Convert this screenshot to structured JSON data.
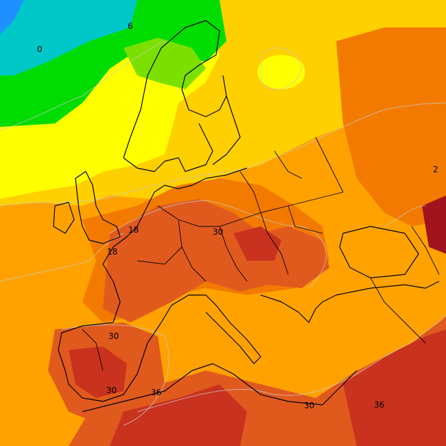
{
  "map": {
    "type": "temperature-field",
    "region": "Europe",
    "colors": {
      "cold_blue": "#1e90ff",
      "cyan": "#00c8c8",
      "green": "#00dc00",
      "light_green": "#7be000",
      "yellow": "#ffff00",
      "yellow_orange": "#ffd000",
      "orange": "#ffa200",
      "dark_orange": "#f27a00",
      "red_orange": "#e05a1e",
      "red": "#c8321e",
      "dark_red": "#a0141e"
    },
    "contour_labels": [
      "0",
      "6",
      "18",
      "18",
      "30",
      "30",
      "30",
      "30",
      "36",
      "36",
      "2"
    ]
  }
}
